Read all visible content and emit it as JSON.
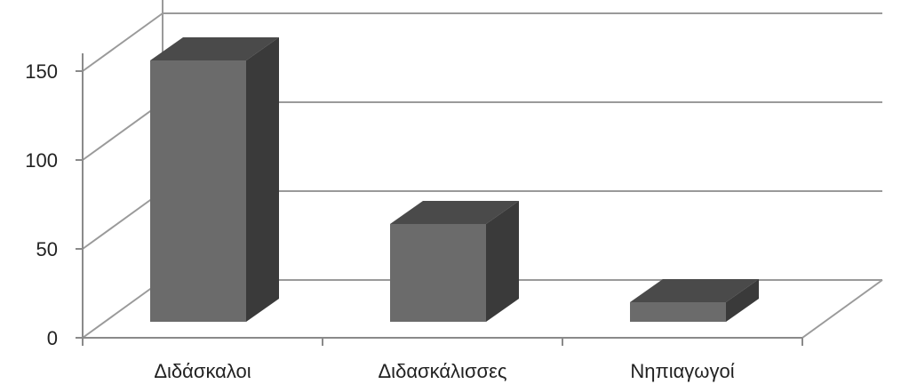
{
  "chart_data": {
    "type": "bar",
    "style": "3d-column",
    "categories": [
      "Διδάσκαλοι",
      "Διδασκάλισσες",
      "Νηπιαγωγοί"
    ],
    "values": [
      147,
      55,
      11
    ],
    "ylim": [
      0,
      150
    ],
    "yticks": [
      0,
      50,
      100,
      150
    ],
    "ytick_labels": [
      "0",
      "50",
      "100",
      "150"
    ],
    "grid": true,
    "legend": "none",
    "title": "",
    "xlabel": "",
    "ylabel": "",
    "colors": {
      "bar_front": "#6b6b6b",
      "bar_top": "#4a4a4a",
      "bar_side": "#3a3a3a",
      "grid": "#9a9a9a"
    }
  }
}
